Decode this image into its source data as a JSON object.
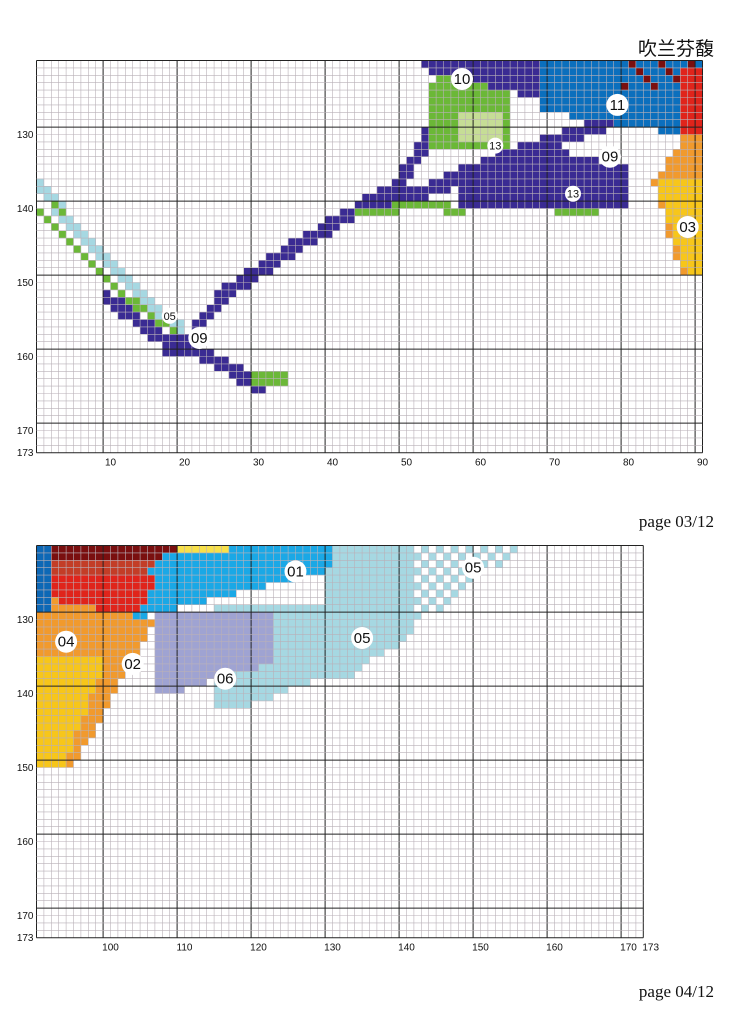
{
  "document": {
    "title": "吹兰芬馥",
    "pages": [
      {
        "label": "page 03/12",
        "x_range": [
          91,
          181
        ],
        "y_range": [
          121,
          173
        ],
        "x_ticks": [
          {
            "value": 100,
            "label": "10"
          },
          {
            "value": 110,
            "label": "20"
          },
          {
            "value": 120,
            "label": "30"
          },
          {
            "value": 130,
            "label": "40"
          },
          {
            "value": 140,
            "label": "50"
          },
          {
            "value": 150,
            "label": "60"
          },
          {
            "value": 160,
            "label": "70"
          },
          {
            "value": 170,
            "label": "80"
          },
          {
            "value": 180,
            "label": "90"
          }
        ],
        "y_ticks": [
          {
            "value": 130,
            "label": "130"
          },
          {
            "value": 140,
            "label": "140"
          },
          {
            "value": 150,
            "label": "150"
          },
          {
            "value": 160,
            "label": "160"
          },
          {
            "value": 170,
            "label": "170"
          },
          {
            "value": 173,
            "label": "173"
          }
        ],
        "markers": [
          {
            "label": "10",
            "x": 147.5,
            "y": 122.5
          },
          {
            "label": "11",
            "x": 168.5,
            "y": 126
          },
          {
            "label": "13",
            "x": 152,
            "y": 131.5
          },
          {
            "label": "09",
            "x": 167.5,
            "y": 133
          },
          {
            "label": "13",
            "x": 162.5,
            "y": 138
          },
          {
            "label": "03",
            "x": 178,
            "y": 142.5
          },
          {
            "label": "05",
            "x": 108,
            "y": 154.5
          },
          {
            "label": "09",
            "x": 112,
            "y": 157.5
          }
        ]
      },
      {
        "label": "page 04/12",
        "x_range": [
          91,
          173
        ],
        "y_range": [
          121,
          173
        ],
        "x_ticks": [
          {
            "value": 100,
            "label": "100"
          },
          {
            "value": 110,
            "label": "110"
          },
          {
            "value": 120,
            "label": "120"
          },
          {
            "value": 130,
            "label": "130"
          },
          {
            "value": 140,
            "label": "140"
          },
          {
            "value": 150,
            "label": "150"
          },
          {
            "value": 160,
            "label": "160"
          },
          {
            "value": 170,
            "label": "170"
          },
          {
            "value": 173,
            "label": "173"
          }
        ],
        "y_ticks": [
          {
            "value": 130,
            "label": "130"
          },
          {
            "value": 140,
            "label": "140"
          },
          {
            "value": 150,
            "label": "150"
          },
          {
            "value": 160,
            "label": "160"
          },
          {
            "value": 170,
            "label": "170"
          },
          {
            "value": 173,
            "label": "173"
          }
        ],
        "markers": [
          {
            "label": "01",
            "x": 125,
            "y": 123.5
          },
          {
            "label": "05",
            "x": 149,
            "y": 123
          },
          {
            "label": "05",
            "x": 134,
            "y": 132.5
          },
          {
            "label": "04",
            "x": 94,
            "y": 133
          },
          {
            "label": "02",
            "x": 103,
            "y": 136
          },
          {
            "label": "06",
            "x": 115.5,
            "y": 138
          }
        ]
      }
    ],
    "colors": {
      "01": "#1aa8e6",
      "02": "#f19a2d",
      "03": "#f7c61a",
      "04": "#e0241b",
      "05": "#a6d8e2",
      "06": "#9fa3d2",
      "07": "#7a0f0f",
      "08": "#0d68b6",
      "09": "#3a2b93",
      "10": "#6bb837",
      "11": "#0b6fbd",
      "12": "#f7e04a",
      "13": "#c6dd96",
      "14": "#c33d27"
    }
  }
}
